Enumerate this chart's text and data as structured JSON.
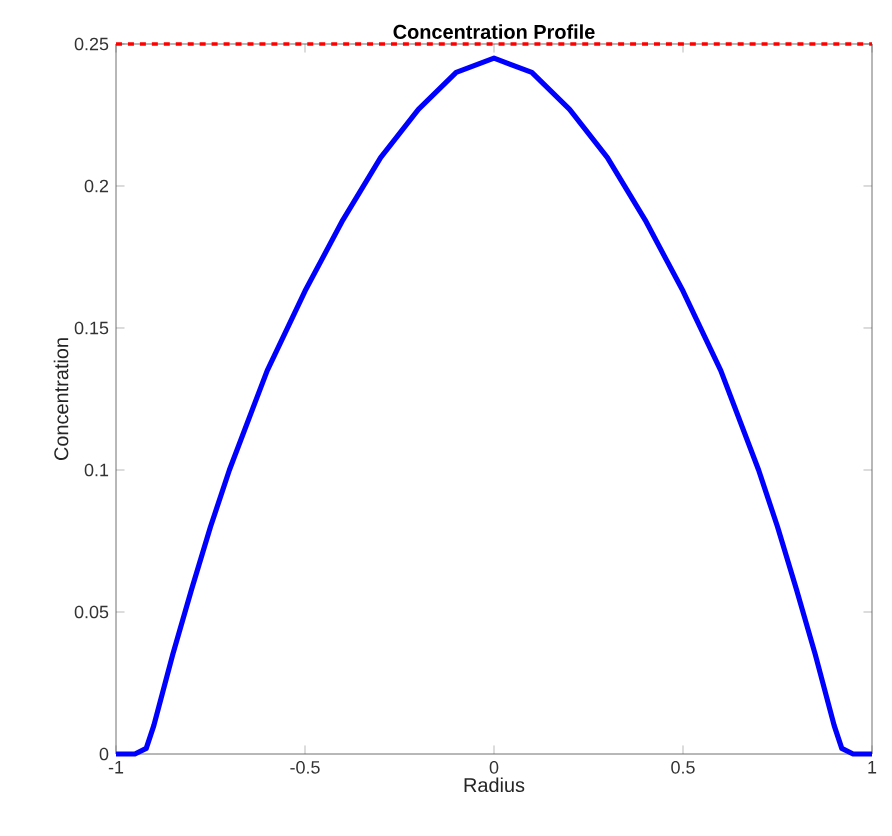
{
  "chart_data": {
    "type": "line",
    "title": "Concentration Profile",
    "xlabel": "Radius",
    "ylabel": "Concentration",
    "x": [
      -1,
      -0.95,
      -0.92,
      -0.9,
      -0.85,
      -0.8,
      -0.75,
      -0.7,
      -0.6,
      -0.5,
      -0.4,
      -0.3,
      -0.2,
      -0.1,
      0,
      0.1,
      0.2,
      0.3,
      0.4,
      0.5,
      0.6,
      0.7,
      0.75,
      0.8,
      0.85,
      0.9,
      0.92,
      0.95,
      1
    ],
    "series": [
      {
        "color": "#0000ff",
        "values": [
          0,
          0,
          0.002,
          0.01,
          0.035,
          0.058,
          0.08,
          0.1,
          0.135,
          0.163,
          0.188,
          0.21,
          0.227,
          0.24,
          0.245,
          0.24,
          0.227,
          0.21,
          0.188,
          0.163,
          0.135,
          0.1,
          0.08,
          0.058,
          0.035,
          0.01,
          0.002,
          0,
          0
        ]
      }
    ],
    "xlim": [
      -1,
      1
    ],
    "xticks": [
      -1,
      -0.5,
      0,
      0.5,
      1
    ],
    "ylim": [
      0,
      0.25
    ],
    "yticks": [
      0,
      0.05,
      0.1,
      0.15,
      0.2,
      0.25
    ],
    "ref_lines": [
      {
        "axis": "y",
        "value": 0.25,
        "color": "#ff0000",
        "line_style": "dashed"
      }
    ],
    "grid": false,
    "marker": "none",
    "line_style": "solid"
  }
}
